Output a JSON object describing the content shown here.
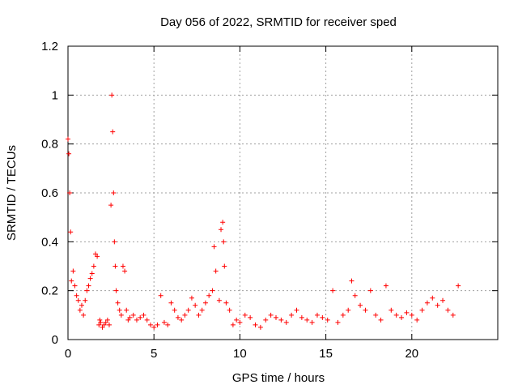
{
  "chart_data": {
    "type": "scatter",
    "title": "Day 056 of 2022, SRMTID for receiver sped",
    "xlabel": "GPS time / hours",
    "ylabel": "SRMTID / TECUs",
    "xlim": [
      0,
      25
    ],
    "ylim": [
      0,
      1.2
    ],
    "xticks": [
      0,
      5,
      10,
      15,
      20
    ],
    "yticks": [
      0,
      0.2,
      0.4,
      0.6,
      0.8,
      1.0,
      1.2
    ],
    "xtick_labels": [
      "0",
      "5",
      "10",
      "15",
      "20"
    ],
    "ytick_labels": [
      "0",
      "0.2",
      "0.4",
      "0.6",
      "0.8",
      "1",
      "1.2"
    ],
    "grid": true,
    "marker": "+",
    "color": "#ff0000",
    "series": [
      {
        "name": "SRMTID",
        "x": [
          0.0,
          0.05,
          0.1,
          0.15,
          0.2,
          0.3,
          0.4,
          0.5,
          0.6,
          0.7,
          0.8,
          0.9,
          1.0,
          1.1,
          1.2,
          1.3,
          1.4,
          1.5,
          1.6,
          1.7,
          1.8,
          1.85,
          1.9,
          2.0,
          2.1,
          2.2,
          2.3,
          2.4,
          2.5,
          2.55,
          2.6,
          2.65,
          2.7,
          2.75,
          2.8,
          2.9,
          3.0,
          3.1,
          3.2,
          3.3,
          3.4,
          3.5,
          3.6,
          3.8,
          4.0,
          4.2,
          4.4,
          4.6,
          4.8,
          5.0,
          5.2,
          5.4,
          5.6,
          5.8,
          6.0,
          6.2,
          6.4,
          6.6,
          6.8,
          7.0,
          7.2,
          7.4,
          7.6,
          7.8,
          8.0,
          8.2,
          8.4,
          8.5,
          8.6,
          8.8,
          8.9,
          9.0,
          9.05,
          9.1,
          9.2,
          9.4,
          9.6,
          9.8,
          10.0,
          10.3,
          10.6,
          10.9,
          11.2,
          11.5,
          11.8,
          12.1,
          12.4,
          12.7,
          13.0,
          13.3,
          13.6,
          13.9,
          14.2,
          14.5,
          14.8,
          15.1,
          15.4,
          15.7,
          16.0,
          16.3,
          16.5,
          16.7,
          17.0,
          17.3,
          17.6,
          17.9,
          18.2,
          18.5,
          18.8,
          19.1,
          19.4,
          19.7,
          20.0,
          20.3,
          20.6,
          20.9,
          21.2,
          21.5,
          21.8,
          22.1,
          22.4,
          22.7
        ],
        "y": [
          0.82,
          0.76,
          0.6,
          0.44,
          0.24,
          0.28,
          0.22,
          0.18,
          0.16,
          0.12,
          0.14,
          0.1,
          0.16,
          0.2,
          0.22,
          0.25,
          0.27,
          0.3,
          0.35,
          0.34,
          0.06,
          0.08,
          0.07,
          0.05,
          0.06,
          0.07,
          0.08,
          0.06,
          0.55,
          1.0,
          0.85,
          0.6,
          0.4,
          0.3,
          0.2,
          0.15,
          0.12,
          0.1,
          0.3,
          0.28,
          0.12,
          0.08,
          0.09,
          0.1,
          0.08,
          0.09,
          0.1,
          0.08,
          0.06,
          0.05,
          0.06,
          0.18,
          0.07,
          0.06,
          0.15,
          0.12,
          0.09,
          0.08,
          0.1,
          0.12,
          0.17,
          0.14,
          0.1,
          0.12,
          0.15,
          0.18,
          0.2,
          0.38,
          0.28,
          0.16,
          0.45,
          0.48,
          0.4,
          0.3,
          0.15,
          0.12,
          0.06,
          0.08,
          0.07,
          0.1,
          0.09,
          0.06,
          0.05,
          0.08,
          0.1,
          0.09,
          0.08,
          0.07,
          0.1,
          0.12,
          0.09,
          0.08,
          0.07,
          0.1,
          0.09,
          0.08,
          0.2,
          0.07,
          0.1,
          0.12,
          0.24,
          0.18,
          0.14,
          0.12,
          0.2,
          0.1,
          0.08,
          0.22,
          0.12,
          0.1,
          0.09,
          0.11,
          0.1,
          0.08,
          0.12,
          0.15,
          0.17,
          0.14,
          0.16,
          0.12,
          0.1,
          0.22
        ]
      }
    ]
  }
}
